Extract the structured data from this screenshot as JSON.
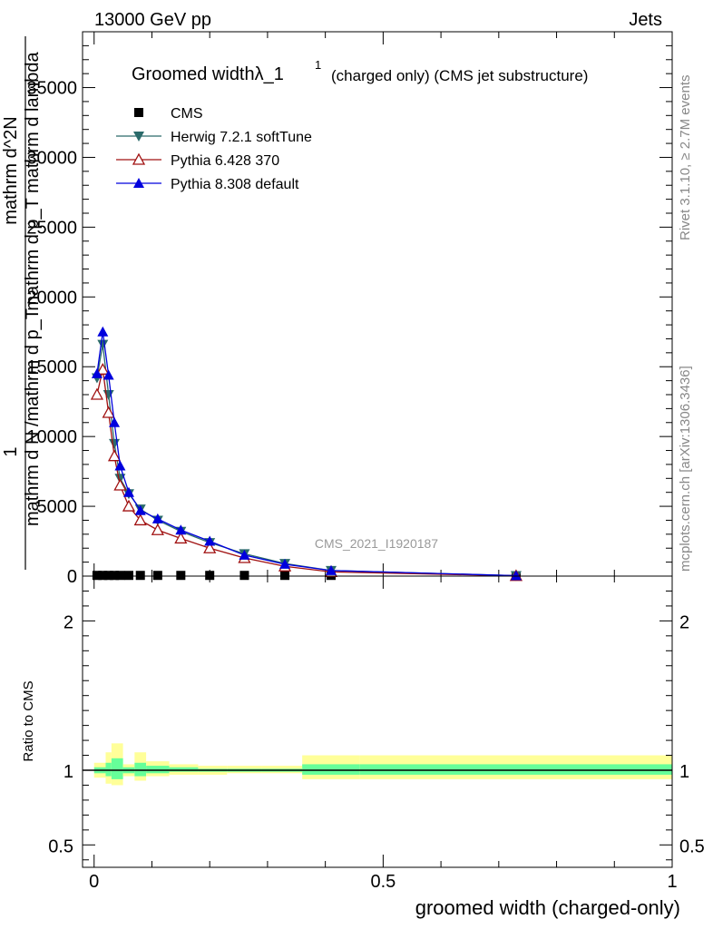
{
  "header": {
    "left": "13000 GeV pp",
    "right": "Jets"
  },
  "side_labels": {
    "rivet": "Rivet 3.1.10, ≥ 2.7M events",
    "mcplots": "mcplots.cern.ch [arXiv:1306.3436]"
  },
  "main_plot": {
    "title_main": "Groomed widthλ_1",
    "title_sup": "1",
    "title_tail": "(charged only) (CMS jet substructure)",
    "ylabel_lines": [
      "1",
      "mathrm d N /mathrm d p_T",
      "mathrm d^2N",
      "mathrm d p_T mathrm d lambda"
    ],
    "watermark": "CMS_2021_I1920187"
  },
  "ratio_plot": {
    "ylabel": "Ratio to CMS"
  },
  "xlabel": "groomed width (charged-only)",
  "colors": {
    "cms": "#000000",
    "herwig": "#2b6b6b",
    "pythia6": "#a01010",
    "pythia8": "#0000dd",
    "band_outer": "#ffff99",
    "band_inner": "#66ff99"
  },
  "chart_data": {
    "type": "line",
    "xlim": [
      -0.02,
      1.0
    ],
    "ylim": [
      0,
      39000
    ],
    "ratio_ylim": [
      0.35,
      2.3
    ],
    "x_ticks": [
      "0",
      "0.5",
      "1"
    ],
    "y_ticks": [
      "0",
      "5000",
      "10000",
      "15000",
      "20000",
      "25000",
      "30000",
      "35000"
    ],
    "ratio_ticks": [
      "0.5",
      "1",
      "2"
    ],
    "x": [
      0.005,
      0.015,
      0.025,
      0.035,
      0.045,
      0.06,
      0.08,
      0.11,
      0.15,
      0.2,
      0.26,
      0.33,
      0.41,
      0.73
    ],
    "legend": [
      {
        "name": "CMS",
        "marker": "square"
      },
      {
        "name": "Herwig 7.2.1 softTune",
        "marker": "triangle-down"
      },
      {
        "name": "Pythia 6.428 370",
        "marker": "triangle-up-open"
      },
      {
        "name": "Pythia 8.308 default",
        "marker": "triangle-up"
      }
    ],
    "series": [
      {
        "name": "CMS",
        "values": [
          50,
          50,
          50,
          50,
          50,
          50,
          50,
          50,
          50,
          50,
          50,
          50,
          50,
          20
        ]
      },
      {
        "name": "Herwig 7.2.1 softTune",
        "values": [
          14200,
          16600,
          13000,
          9500,
          7000,
          5900,
          4800,
          4000,
          3200,
          2400,
          1600,
          900,
          400,
          30
        ]
      },
      {
        "name": "Pythia 6.428 370",
        "values": [
          13000,
          14800,
          11700,
          8600,
          6500,
          5000,
          4000,
          3300,
          2700,
          2000,
          1300,
          700,
          300,
          20
        ]
      },
      {
        "name": "Pythia 8.308 default",
        "values": [
          14500,
          17500,
          14400,
          11000,
          7900,
          6000,
          4700,
          4100,
          3300,
          2500,
          1500,
          850,
          400,
          30
        ]
      }
    ],
    "ratio_band": {
      "edges": [
        0.0,
        0.02,
        0.03,
        0.05,
        0.07,
        0.09,
        0.13,
        0.18,
        0.23,
        0.29,
        0.36,
        0.46,
        1.0
      ],
      "outer_lo": [
        0.95,
        0.91,
        0.9,
        0.96,
        0.93,
        0.96,
        0.97,
        0.97,
        0.98,
        0.98,
        0.94,
        0.94,
        0.94
      ],
      "outer_hi": [
        1.05,
        1.12,
        1.18,
        1.04,
        1.12,
        1.06,
        1.04,
        1.03,
        1.03,
        1.03,
        1.1,
        1.1,
        1.1
      ],
      "inner_lo": [
        0.98,
        0.96,
        0.94,
        0.98,
        0.96,
        0.98,
        0.99,
        0.99,
        0.99,
        0.99,
        0.97,
        0.97,
        0.97
      ],
      "inner_hi": [
        1.02,
        1.05,
        1.08,
        1.02,
        1.05,
        1.03,
        1.02,
        1.01,
        1.01,
        1.01,
        1.04,
        1.04,
        1.04
      ]
    }
  }
}
